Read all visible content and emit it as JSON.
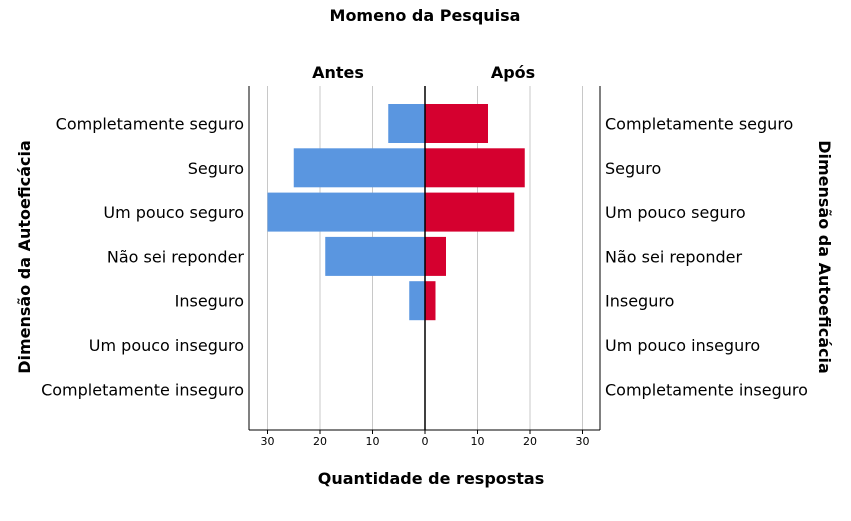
{
  "chart_data": {
    "type": "bar",
    "title": "Momeno da Pesquisa",
    "xlabel": "Quantidade de respostas",
    "ylabel_left": "Dimensão da Autoeficácia",
    "ylabel_right": "Dimensão da Autoeficácia",
    "categories": [
      "Completamente seguro",
      "Seguro",
      "Um pouco seguro",
      "Não sei reponder",
      "Inseguro",
      "Um pouco inseguro",
      "Completamente inseguro"
    ],
    "series": [
      {
        "name": "Antes",
        "values": [
          7,
          25,
          30,
          19,
          3,
          0,
          0
        ],
        "color": "#5a96e0"
      },
      {
        "name": "Após",
        "values": [
          12,
          19,
          17,
          4,
          2,
          0,
          0
        ],
        "color": "#d5002f"
      }
    ],
    "x_ticks": [
      "30",
      "20",
      "10",
      "0",
      "10",
      "20",
      "30"
    ],
    "xlim": [
      0,
      33
    ],
    "grid": true,
    "orientation": "horizontal-mirrored"
  }
}
